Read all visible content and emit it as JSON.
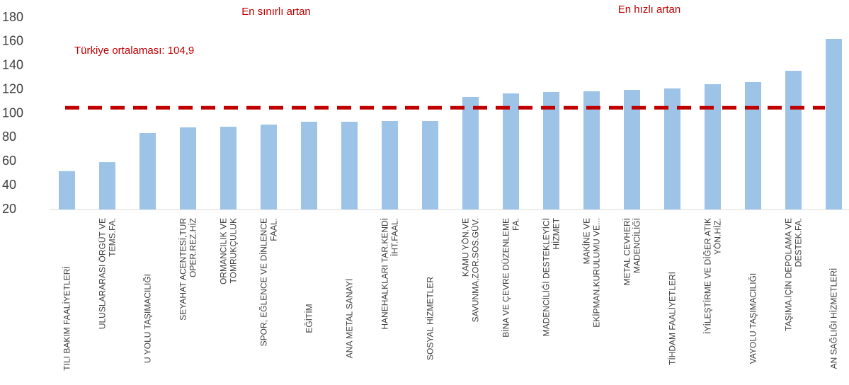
{
  "chart_data": {
    "type": "bar",
    "annotations": [
      "En sınırlı artan",
      "En hızlı artan"
    ],
    "reference_line": {
      "label": "Türkiye ortalaması: 104,9",
      "value": 104.9,
      "color": "#c00000"
    },
    "categories": [
      "TILI BAKIM FAALİYETLERİ",
      "ULUSLARARASI ÖRGÜT VE\nTEMS.FA.",
      "U YOLU TAŞIMACILIĞI",
      "SEYAHAT ACENTESİ,TUR\nOPER.REZ.HİZ",
      "ORMANCILIK VE\nTOMRUKÇULUK",
      "SPOR, EĞLENCE VE DİNLENCE\nFAAL.",
      "EĞİTİM",
      "ANA METAL SANAYİ",
      "HANEHALKLARI TAR.KENDİ\nİHT.FAAL.",
      "SOSYAL HİZMETLER",
      "KAMU YÖN.VE\nSAVUNMA,ZOR.SOS.GÜV.",
      "BİNA VE ÇEVRE DÜZENLEME\nFA.",
      "MADENCİLİĞİ DESTEKLEYİCİ\nHİZMET",
      "MAKİNE VE\nEKİPMAN.KURULUMU VE...",
      "METAL CEVHERİ\nMADENCİLİĞİ",
      "TİHDAM FAALİYETLERİ",
      "İYİLEŞTİRME VE DİĞER ATIK\nYÖN.HİZ.",
      "VAYOLU TAŞIMACILIĞI",
      "TAŞIMA.İÇİN DEPOLAMA VE\nDESTEK.FA.",
      "AN SAĞLIĞI HİZMETLERİ"
    ],
    "values": [
      52,
      59.5,
      83.8,
      88.5,
      89,
      90.8,
      93.2,
      93.2,
      93.8,
      93.8,
      113.9,
      116.8,
      118,
      118.6,
      119.8,
      121,
      124.5,
      126.3,
      135.7,
      162.3
    ],
    "color": "#9dc3e6",
    "ylim": [
      20,
      180
    ],
    "yticks": [
      20,
      40,
      60,
      80,
      100,
      120,
      140,
      160,
      180
    ]
  }
}
